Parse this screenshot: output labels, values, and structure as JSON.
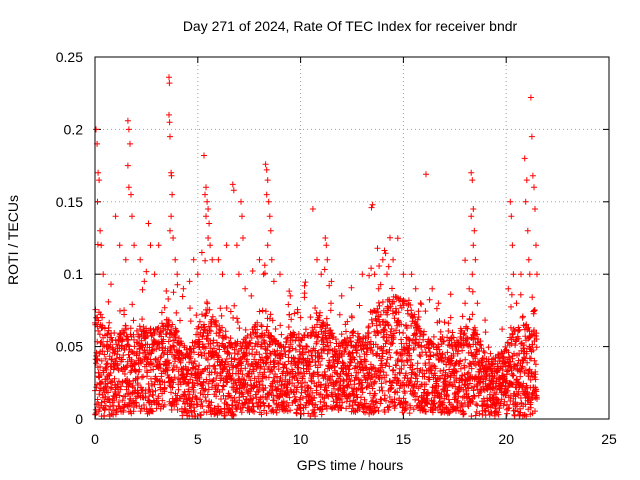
{
  "chart_data": {
    "type": "scatter",
    "title": "Day 271 of 2024, Rate Of TEC Index for receiver bndr",
    "xlabel": "GPS time / hours",
    "ylabel": "ROTI / TECUs",
    "xlim": [
      0,
      25
    ],
    "ylim": [
      0,
      0.25
    ],
    "x_ticks": [
      0,
      5,
      10,
      15,
      20,
      25
    ],
    "y_ticks": [
      0,
      0.05,
      0.1,
      0.15,
      0.2,
      0.25
    ],
    "x_tick_labels": [
      "0",
      "5",
      "10",
      "15",
      "20",
      "25"
    ],
    "y_tick_labels": [
      "0",
      "0.05",
      "0.1",
      "0.15",
      "0.2",
      "0.25"
    ],
    "grid": true,
    "marker": "plus",
    "colors": {
      "series": "#ff0000",
      "grid": "#a0a0a0",
      "frame": "#000000"
    },
    "profile": {
      "x": [
        0,
        0.5,
        1,
        1.5,
        2,
        2.5,
        3,
        3.5,
        4,
        4.5,
        5,
        5.5,
        6,
        6.5,
        7,
        7.5,
        8,
        8.5,
        9,
        9.5,
        10,
        10.5,
        11,
        11.5,
        12,
        12.5,
        13,
        13.5,
        14,
        14.5,
        15,
        15.5,
        16,
        16.5,
        17,
        17.5,
        18,
        18.5,
        19,
        19.5,
        20,
        20.5,
        21,
        21.5
      ],
      "typical": [
        0.035,
        0.03,
        0.028,
        0.03,
        0.03,
        0.03,
        0.032,
        0.035,
        0.03,
        0.02,
        0.03,
        0.04,
        0.03,
        0.025,
        0.025,
        0.03,
        0.035,
        0.03,
        0.025,
        0.03,
        0.028,
        0.03,
        0.035,
        0.03,
        0.028,
        0.03,
        0.03,
        0.035,
        0.04,
        0.042,
        0.04,
        0.035,
        0.03,
        0.025,
        0.028,
        0.03,
        0.03,
        0.03,
        0.02,
        0.02,
        0.025,
        0.03,
        0.03,
        0.03
      ],
      "spread": [
        0.05,
        0.04,
        0.035,
        0.04,
        0.035,
        0.04,
        0.035,
        0.04,
        0.035,
        0.03,
        0.04,
        0.05,
        0.04,
        0.035,
        0.03,
        0.035,
        0.045,
        0.035,
        0.03,
        0.035,
        0.035,
        0.04,
        0.045,
        0.035,
        0.03,
        0.035,
        0.035,
        0.045,
        0.05,
        0.05,
        0.05,
        0.045,
        0.035,
        0.03,
        0.035,
        0.035,
        0.04,
        0.04,
        0.025,
        0.025,
        0.03,
        0.04,
        0.04,
        0.035
      ]
    },
    "peaks": [
      {
        "x": 0.05,
        "y": 0.2
      },
      {
        "x": 0.1,
        "y": 0.19
      },
      {
        "x": 0.15,
        "y": 0.17
      },
      {
        "x": 0.2,
        "y": 0.165
      },
      {
        "x": 0.12,
        "y": 0.15
      },
      {
        "x": 0.25,
        "y": 0.13
      },
      {
        "x": 0.3,
        "y": 0.12
      },
      {
        "x": 0.4,
        "y": 0.1
      },
      {
        "x": 1.0,
        "y": 0.14
      },
      {
        "x": 1.2,
        "y": 0.12
      },
      {
        "x": 1.5,
        "y": 0.11
      },
      {
        "x": 1.6,
        "y": 0.206
      },
      {
        "x": 1.65,
        "y": 0.2
      },
      {
        "x": 1.7,
        "y": 0.19
      },
      {
        "x": 1.6,
        "y": 0.175
      },
      {
        "x": 1.65,
        "y": 0.16
      },
      {
        "x": 1.75,
        "y": 0.155
      },
      {
        "x": 1.8,
        "y": 0.14
      },
      {
        "x": 1.9,
        "y": 0.12
      },
      {
        "x": 2.2,
        "y": 0.11
      },
      {
        "x": 2.4,
        "y": 0.095
      },
      {
        "x": 2.6,
        "y": 0.135
      },
      {
        "x": 2.7,
        "y": 0.12
      },
      {
        "x": 2.9,
        "y": 0.1
      },
      {
        "x": 3.1,
        "y": 0.12
      },
      {
        "x": 3.6,
        "y": 0.236
      },
      {
        "x": 3.62,
        "y": 0.232
      },
      {
        "x": 3.6,
        "y": 0.21
      },
      {
        "x": 3.63,
        "y": 0.205
      },
      {
        "x": 3.65,
        "y": 0.195
      },
      {
        "x": 3.7,
        "y": 0.17
      },
      {
        "x": 3.72,
        "y": 0.168
      },
      {
        "x": 3.75,
        "y": 0.155
      },
      {
        "x": 3.7,
        "y": 0.14
      },
      {
        "x": 3.65,
        "y": 0.13
      },
      {
        "x": 3.8,
        "y": 0.125
      },
      {
        "x": 3.9,
        "y": 0.11
      },
      {
        "x": 4.0,
        "y": 0.1
      },
      {
        "x": 4.3,
        "y": 0.09
      },
      {
        "x": 4.6,
        "y": 0.095
      },
      {
        "x": 4.8,
        "y": 0.11
      },
      {
        "x": 5.3,
        "y": 0.182
      },
      {
        "x": 5.4,
        "y": 0.16
      },
      {
        "x": 5.35,
        "y": 0.155
      },
      {
        "x": 5.45,
        "y": 0.15
      },
      {
        "x": 5.5,
        "y": 0.145
      },
      {
        "x": 5.4,
        "y": 0.14
      },
      {
        "x": 5.55,
        "y": 0.135
      },
      {
        "x": 5.5,
        "y": 0.125
      },
      {
        "x": 5.6,
        "y": 0.12
      },
      {
        "x": 5.7,
        "y": 0.11
      },
      {
        "x": 5.2,
        "y": 0.115
      },
      {
        "x": 5.0,
        "y": 0.1
      },
      {
        "x": 6.0,
        "y": 0.11
      },
      {
        "x": 6.2,
        "y": 0.1
      },
      {
        "x": 6.4,
        "y": 0.12
      },
      {
        "x": 6.7,
        "y": 0.162
      },
      {
        "x": 6.75,
        "y": 0.158
      },
      {
        "x": 6.9,
        "y": 0.12
      },
      {
        "x": 7.0,
        "y": 0.1
      },
      {
        "x": 7.1,
        "y": 0.15
      },
      {
        "x": 7.15,
        "y": 0.14
      },
      {
        "x": 7.2,
        "y": 0.125
      },
      {
        "x": 7.3,
        "y": 0.09
      },
      {
        "x": 7.6,
        "y": 0.085
      },
      {
        "x": 8.0,
        "y": 0.11
      },
      {
        "x": 8.3,
        "y": 0.176
      },
      {
        "x": 8.35,
        "y": 0.172
      },
      {
        "x": 8.4,
        "y": 0.165
      },
      {
        "x": 8.35,
        "y": 0.155
      },
      {
        "x": 8.45,
        "y": 0.15
      },
      {
        "x": 8.5,
        "y": 0.14
      },
      {
        "x": 8.55,
        "y": 0.13
      },
      {
        "x": 8.4,
        "y": 0.12
      },
      {
        "x": 8.6,
        "y": 0.11
      },
      {
        "x": 8.2,
        "y": 0.1
      },
      {
        "x": 8.7,
        "y": 0.095
      },
      {
        "x": 9.0,
        "y": 0.1
      },
      {
        "x": 9.5,
        "y": 0.085
      },
      {
        "x": 10.0,
        "y": 0.07
      },
      {
        "x": 10.6,
        "y": 0.145
      },
      {
        "x": 10.8,
        "y": 0.11
      },
      {
        "x": 11.0,
        "y": 0.1
      },
      {
        "x": 11.2,
        "y": 0.125
      },
      {
        "x": 11.25,
        "y": 0.12
      },
      {
        "x": 11.3,
        "y": 0.11
      },
      {
        "x": 11.5,
        "y": 0.095
      },
      {
        "x": 12.0,
        "y": 0.085
      },
      {
        "x": 12.5,
        "y": 0.07
      },
      {
        "x": 13.0,
        "y": 0.1
      },
      {
        "x": 13.5,
        "y": 0.148
      },
      {
        "x": 13.45,
        "y": 0.146
      },
      {
        "x": 13.6,
        "y": 0.1
      },
      {
        "x": 13.8,
        "y": 0.09
      },
      {
        "x": 14.0,
        "y": 0.11
      },
      {
        "x": 14.2,
        "y": 0.1
      },
      {
        "x": 14.5,
        "y": 0.11
      },
      {
        "x": 15.0,
        "y": 0.1
      },
      {
        "x": 15.4,
        "y": 0.1
      },
      {
        "x": 15.6,
        "y": 0.09
      },
      {
        "x": 16.1,
        "y": 0.169
      },
      {
        "x": 16.4,
        "y": 0.09
      },
      {
        "x": 16.7,
        "y": 0.08
      },
      {
        "x": 17.3,
        "y": 0.07
      },
      {
        "x": 18.0,
        "y": 0.08
      },
      {
        "x": 18.3,
        "y": 0.17
      },
      {
        "x": 18.35,
        "y": 0.165
      },
      {
        "x": 18.4,
        "y": 0.145
      },
      {
        "x": 18.3,
        "y": 0.14
      },
      {
        "x": 18.45,
        "y": 0.13
      },
      {
        "x": 18.4,
        "y": 0.12
      },
      {
        "x": 18.5,
        "y": 0.11
      },
      {
        "x": 18.35,
        "y": 0.1
      },
      {
        "x": 18.2,
        "y": 0.09
      },
      {
        "x": 18.6,
        "y": 0.08
      },
      {
        "x": 19.0,
        "y": 0.06
      },
      {
        "x": 20.2,
        "y": 0.15
      },
      {
        "x": 20.25,
        "y": 0.14
      },
      {
        "x": 20.3,
        "y": 0.12
      },
      {
        "x": 20.35,
        "y": 0.1
      },
      {
        "x": 20.1,
        "y": 0.09
      },
      {
        "x": 20.5,
        "y": 0.08
      },
      {
        "x": 20.9,
        "y": 0.18
      },
      {
        "x": 21.0,
        "y": 0.165
      },
      {
        "x": 20.95,
        "y": 0.15
      },
      {
        "x": 21.05,
        "y": 0.13
      },
      {
        "x": 21.1,
        "y": 0.11
      },
      {
        "x": 21.15,
        "y": 0.1
      },
      {
        "x": 21.2,
        "y": 0.222
      },
      {
        "x": 21.25,
        "y": 0.195
      },
      {
        "x": 21.3,
        "y": 0.168
      },
      {
        "x": 21.35,
        "y": 0.16
      },
      {
        "x": 21.4,
        "y": 0.145
      },
      {
        "x": 21.45,
        "y": 0.12
      },
      {
        "x": 21.5,
        "y": 0.1
      }
    ]
  }
}
